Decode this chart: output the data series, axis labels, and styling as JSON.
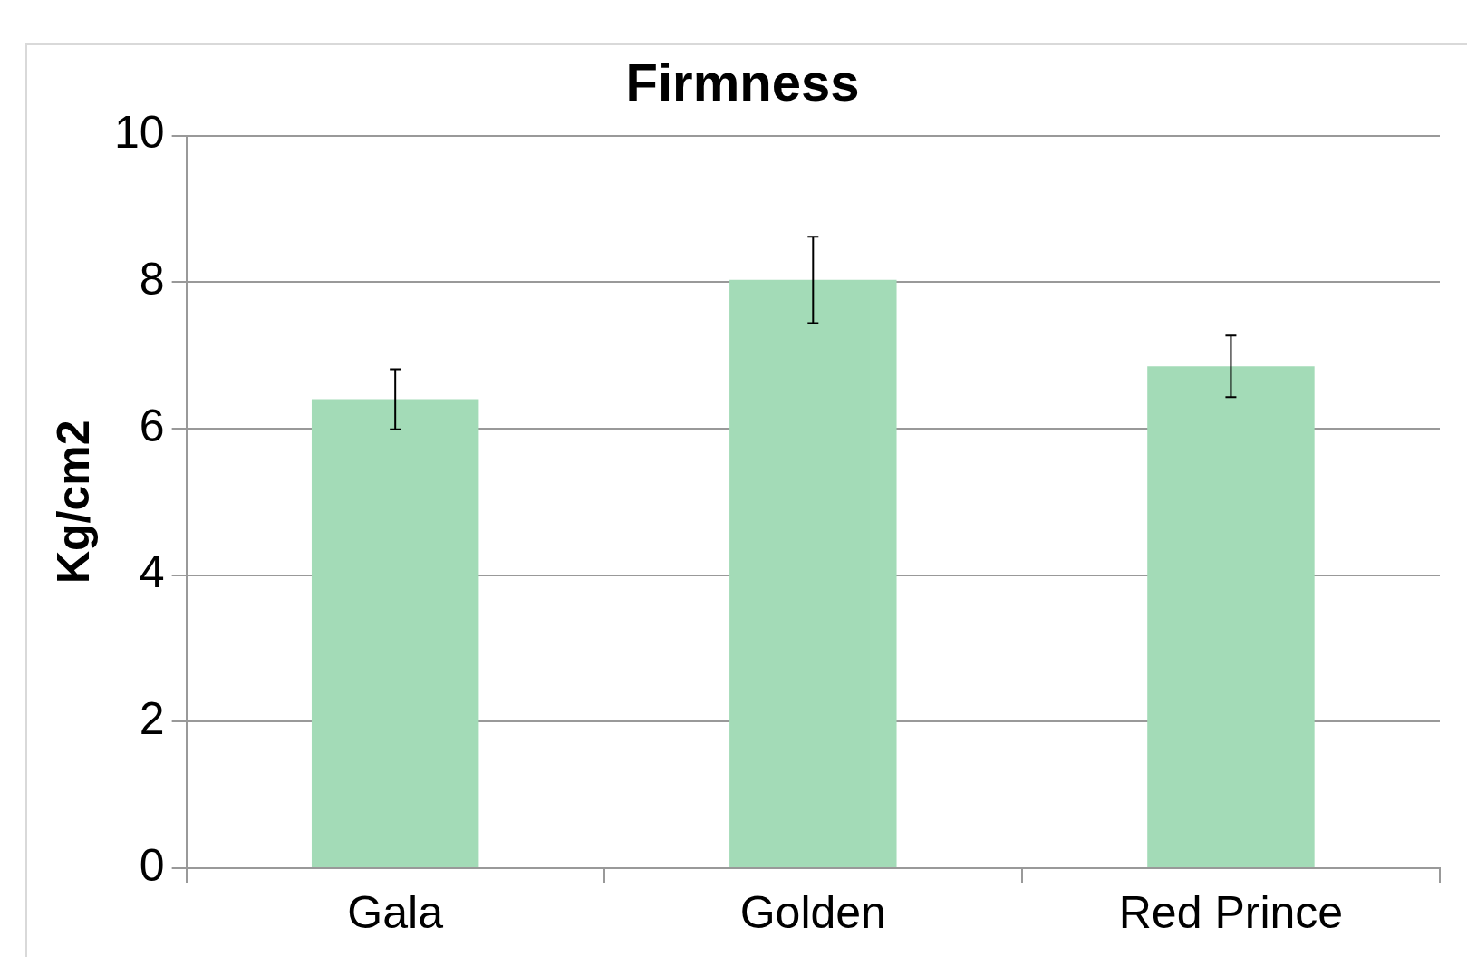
{
  "chart_data": {
    "type": "bar",
    "title": "Firmness",
    "ylabel": "Kg/cm2",
    "categories": [
      "Gala",
      "Golden",
      "Red Prince"
    ],
    "values": [
      6.4,
      8.03,
      6.85
    ],
    "errors": [
      0.41,
      0.59,
      0.42
    ],
    "color": "#a3dbb7",
    "ylim": [
      0,
      10
    ],
    "yticks": [
      0,
      2,
      4,
      6,
      8,
      10
    ],
    "grid": "y"
  }
}
